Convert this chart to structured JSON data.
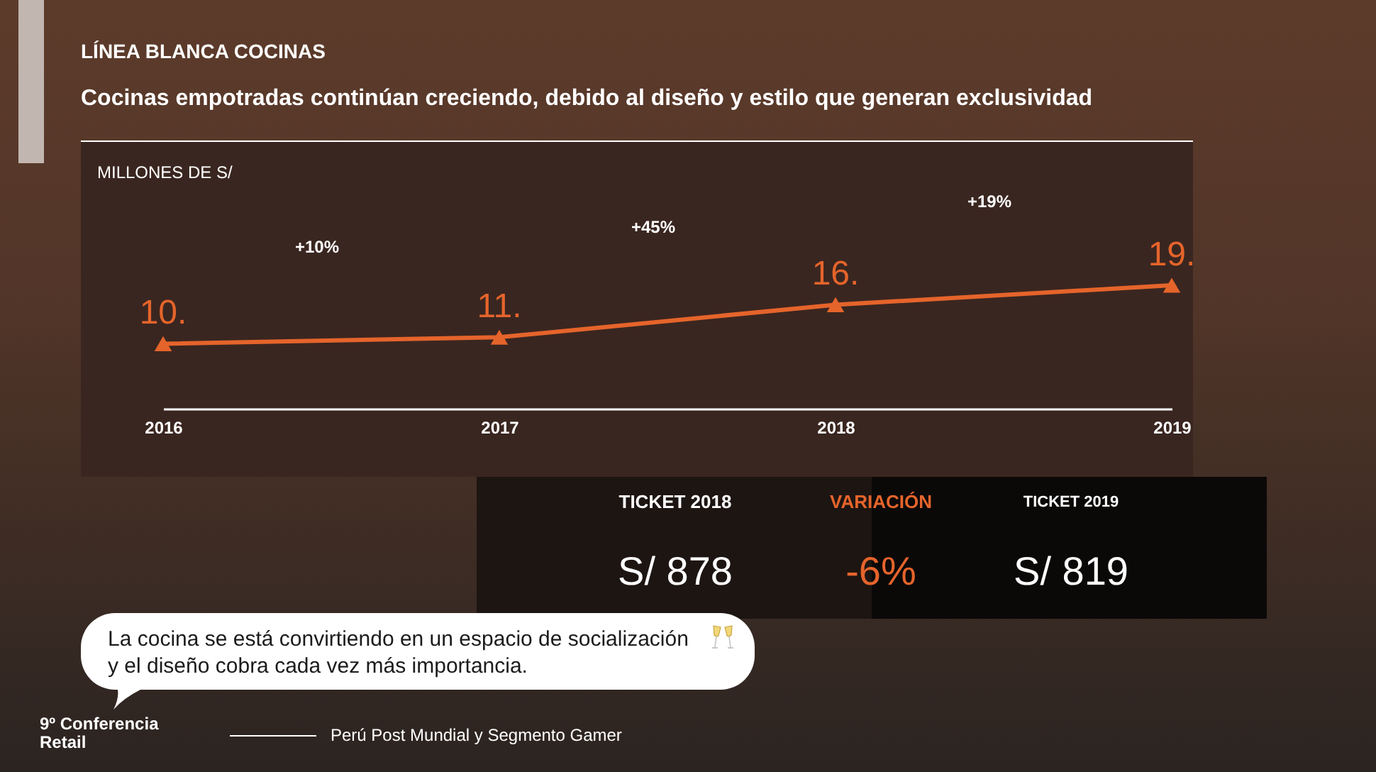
{
  "chart_data": [
    {
      "type": "line",
      "title": "LÍNEA BLANCA COCINAS",
      "subtitle": "Cocinas empotradas continúan creciendo, debido al diseño y estilo que generan exclusividad",
      "ylabel": "MILLONES DE S/",
      "categories": [
        "2016",
        "2017",
        "2018",
        "2019"
      ],
      "values": [
        10,
        11,
        16,
        19
      ],
      "value_labels": [
        "10.",
        "11.",
        "16.",
        "19."
      ],
      "color": "#e5642b",
      "marker": "triangle",
      "grid": false,
      "annotations": [
        "+10%",
        "+45%",
        "+19%",
        "La cocina se está convirtiendo en un espacio de socialización y el diseño cobra cada vez más importancia.",
        "9º Conferencia Retail",
        "Perú Post Mundial y Segmento Gamer"
      ]
    },
    {
      "type": "other",
      "categories": [
        "TICKET 2018",
        "VARIACIÓN",
        "TICKET 2019"
      ],
      "value_labels": [
        "S/ 878",
        "-6%",
        "S/ 819"
      ],
      "colors": [
        "#ffffff",
        "#e5642b",
        "#ffffff"
      ]
    }
  ]
}
